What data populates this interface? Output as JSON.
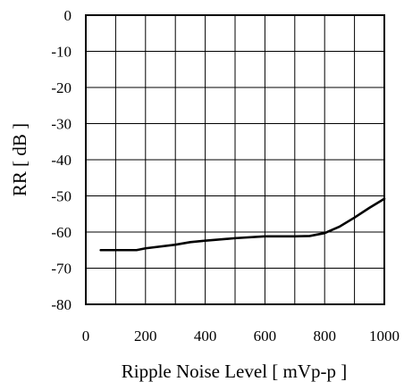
{
  "chart_data": {
    "type": "line",
    "xlabel": "Ripple Noise Level [ mVp-p ]",
    "ylabel": "RR [ dB ]",
    "xlim": [
      0,
      1000
    ],
    "ylim": [
      -80,
      0
    ],
    "xticks": [
      0,
      200,
      400,
      600,
      800,
      1000
    ],
    "xtick_labels": [
      "0",
      "200",
      "400",
      "600",
      "800",
      "1000"
    ],
    "yticks": [
      0,
      -10,
      -20,
      -30,
      -40,
      -50,
      -60,
      -70,
      -80
    ],
    "ytick_labels": [
      "0",
      "-10",
      "-20",
      "-30",
      "-40",
      "-50",
      "-60",
      "-70",
      "-80"
    ],
    "grid": true,
    "x_grid_step": 100,
    "series": [
      {
        "x": [
          50,
          100,
          170,
          200,
          300,
          350,
          400,
          500,
          600,
          700,
          750,
          800,
          850,
          900,
          950,
          1000
        ],
        "values": [
          -65,
          -65,
          -65,
          -64.5,
          -63.5,
          -62.8,
          -62.4,
          -61.7,
          -61.2,
          -61.2,
          -61.1,
          -60.3,
          -58.5,
          -56,
          -53.3,
          -50.8
        ]
      }
    ]
  },
  "colors": {
    "line": "#000000",
    "grid": "#000000",
    "background": "#ffffff"
  }
}
